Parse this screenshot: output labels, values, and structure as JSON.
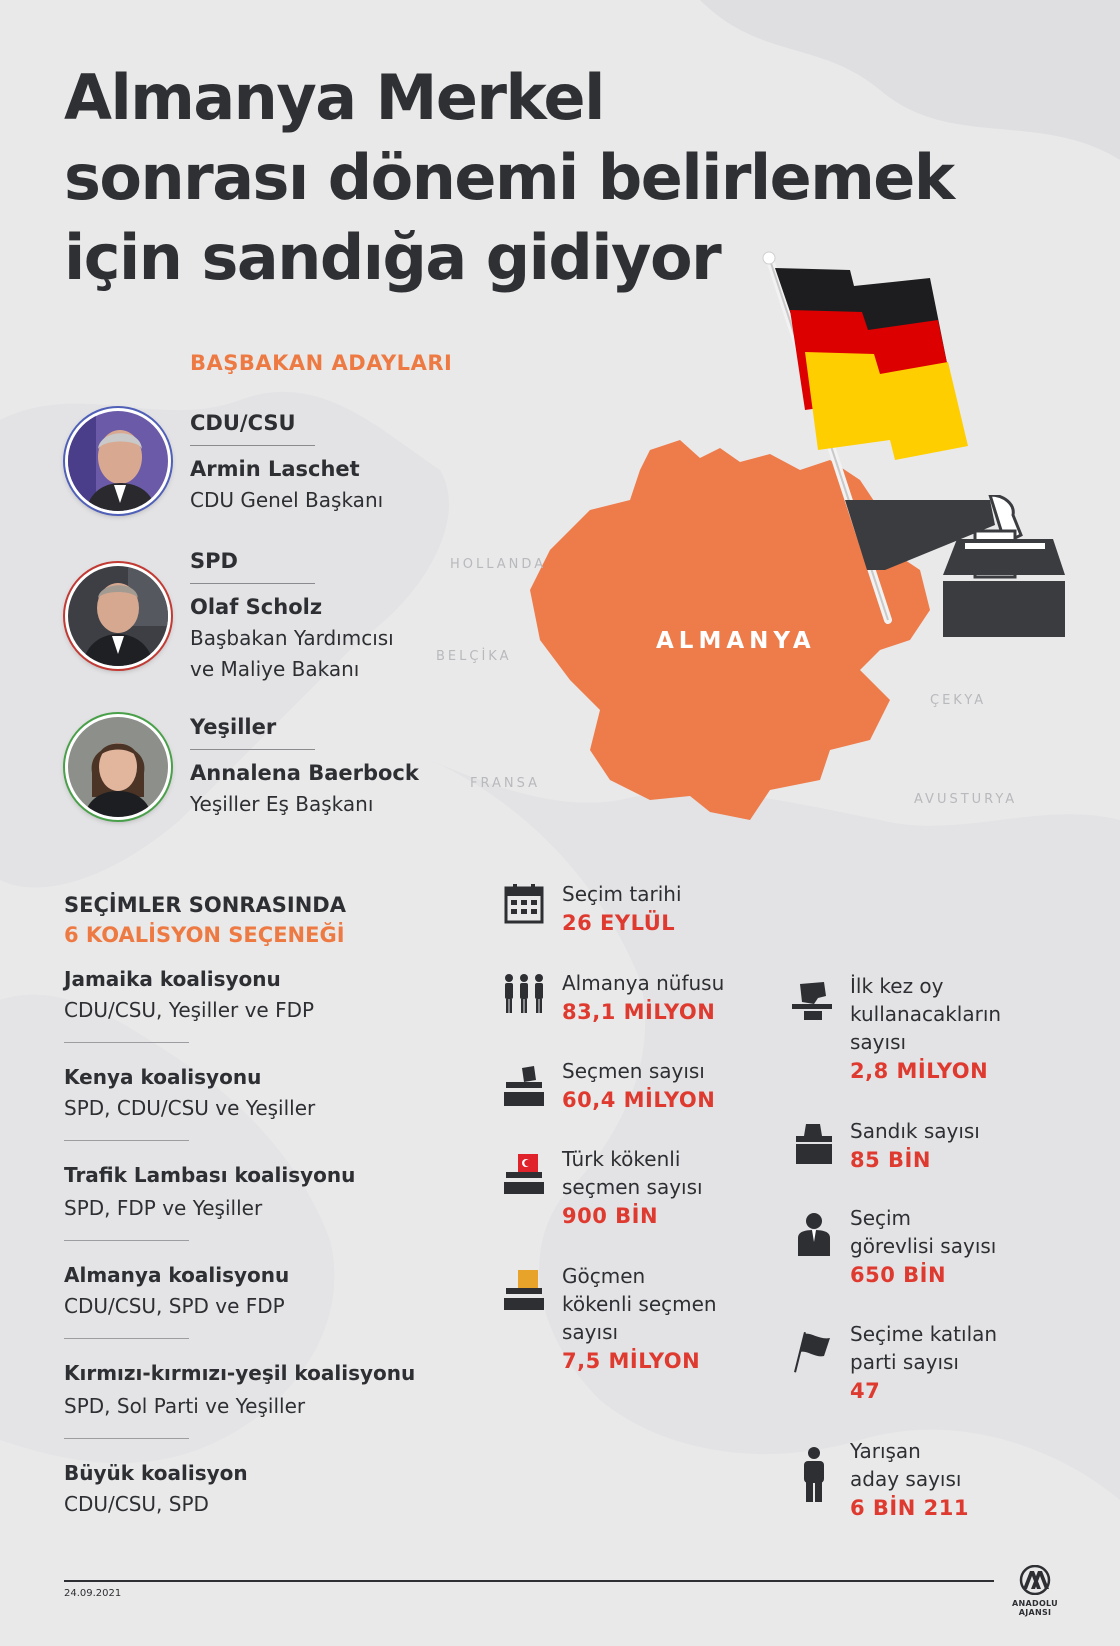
{
  "title_lines": [
    "Almanya Merkel",
    "sonrası dönemi belirlemek",
    "için sandığa gidiyor"
  ],
  "candidates_section": "BAŞBAKAN ADAYLARI",
  "candidates": [
    {
      "party": "CDU/CSU",
      "name": "Armin Laschet",
      "role_lines": [
        "CDU Genel Başkanı"
      ]
    },
    {
      "party": "SPD",
      "name": "Olaf Scholz",
      "role_lines": [
        "Başbakan Yardımcısı",
        "ve Maliye Bakanı"
      ]
    },
    {
      "party": "Yeşiller",
      "name": "Annalena Baerbock",
      "role_lines": [
        "Yeşiller Eş Başkanı"
      ]
    }
  ],
  "map": {
    "country": "ALMANYA",
    "neighbors": {
      "netherlands": "HOLLANDA",
      "belgium": "BELÇİKA",
      "france": "FRANSA",
      "czechia": "ÇEKYA",
      "austria": "AVUSTURYA"
    }
  },
  "coalitions": {
    "heading_line1": "SEÇİMLER SONRASINDA",
    "heading_line2": "6 KOALİSYON SEÇENEĞİ",
    "items": [
      {
        "name": "Jamaika koalisyonu",
        "parties": "CDU/CSU, Yeşiller ve FDP"
      },
      {
        "name": "Kenya koalisyonu",
        "parties": "SPD, CDU/CSU ve Yeşiller"
      },
      {
        "name": "Trafik Lambası koalisyonu",
        "parties": "SPD, FDP ve Yeşiller"
      },
      {
        "name": "Almanya koalisyonu",
        "parties": "CDU/CSU, SPD ve FDP"
      },
      {
        "name": "Kırmızı-kırmızı-yeşil koalisyonu",
        "parties": "SPD, Sol Parti ve Yeşiller"
      },
      {
        "name": "Büyük koalisyon",
        "parties": "CDU/CSU, SPD"
      }
    ]
  },
  "stats_left": [
    {
      "icon": "calendar-icon",
      "label_lines": [
        "Seçim tarihi"
      ],
      "value": "26 EYLÜL"
    },
    {
      "icon": "population-icon",
      "label_lines": [
        "Almanya nüfusu"
      ],
      "value": "83,1 MİLYON"
    },
    {
      "icon": "ballot-box-icon",
      "label_lines": [
        "Seçmen sayısı"
      ],
      "value": "60,4 MİLYON"
    },
    {
      "icon": "turkish-ballot-icon",
      "label_lines": [
        "Türk kökenli",
        "seçmen sayısı"
      ],
      "value": "900 BİN"
    },
    {
      "icon": "migrant-ballot-icon",
      "label_lines": [
        "Göçmen",
        "kökenli seçmen",
        "sayısı"
      ],
      "value": "7,5 MİLYON"
    }
  ],
  "stats_right": [
    {
      "icon": "first-vote-icon",
      "label_lines": [
        "İlk kez oy",
        "kullanacakların",
        "sayısı"
      ],
      "value": "2,8 MİLYON"
    },
    {
      "icon": "ballot-box-plain-icon",
      "label_lines": [
        "Sandık sayısı"
      ],
      "value": "85 BİN"
    },
    {
      "icon": "official-icon",
      "label_lines": [
        "Seçim",
        "görevlisi sayısı"
      ],
      "value": "650 BİN"
    },
    {
      "icon": "flag-icon",
      "label_lines": [
        "Seçime katılan",
        "parti sayısı"
      ],
      "value": "47"
    },
    {
      "icon": "person-icon",
      "label_lines": [
        "Yarışan",
        "aday sayısı"
      ],
      "value": "6 BİN 211"
    }
  ],
  "footer": {
    "date": "24.09.2021",
    "agency_mark": "AA",
    "agency_name": "ANADOLU AJANSI"
  },
  "colors": {
    "orange": "#ee7a43",
    "red_value": "#df3a2f",
    "dark": "#2d2f33",
    "flag_black": "#1d1d1f",
    "flag_red": "#dd0000",
    "flag_gold": "#ffce00"
  }
}
